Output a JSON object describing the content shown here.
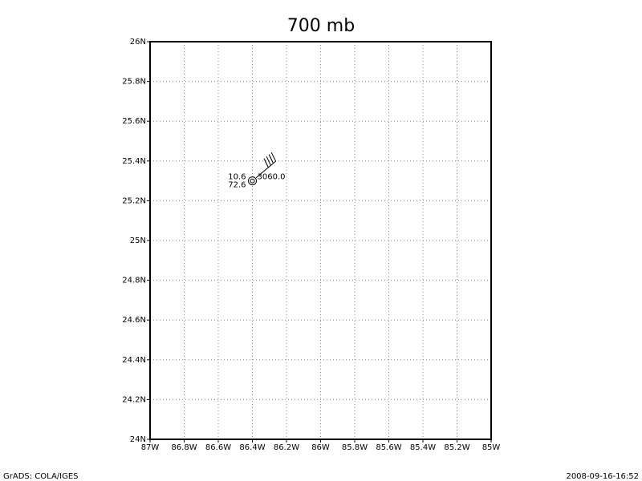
{
  "chart_data": {
    "type": "station",
    "title": "700 mb",
    "xlim": [
      -87,
      -85
    ],
    "xticks": [
      {
        "value": -87,
        "label": "87W"
      },
      {
        "value": -86.8,
        "label": "86.8W"
      },
      {
        "value": -86.6,
        "label": "86.6W"
      },
      {
        "value": -86.4,
        "label": "86.4W"
      },
      {
        "value": -86.2,
        "label": "86.2W"
      },
      {
        "value": -86,
        "label": "86W"
      },
      {
        "value": -85.8,
        "label": "85.8W"
      },
      {
        "value": -85.6,
        "label": "85.6W"
      },
      {
        "value": -85.4,
        "label": "85.4W"
      },
      {
        "value": -85.2,
        "label": "85.2W"
      },
      {
        "value": -85,
        "label": "85W"
      }
    ],
    "ylim": [
      24,
      26
    ],
    "yticks": [
      {
        "value": 24,
        "label": "24N"
      },
      {
        "value": 24.2,
        "label": "24.2N"
      },
      {
        "value": 24.4,
        "label": "24.4N"
      },
      {
        "value": 24.6,
        "label": "24.6N"
      },
      {
        "value": 24.8,
        "label": "24.8N"
      },
      {
        "value": 25,
        "label": "25N"
      },
      {
        "value": 25.2,
        "label": "25.2N"
      },
      {
        "value": 25.4,
        "label": "25.4N"
      },
      {
        "value": 25.6,
        "label": "25.6N"
      },
      {
        "value": 25.8,
        "label": "25.8N"
      },
      {
        "value": 26,
        "label": "26N"
      }
    ],
    "grid": true,
    "station": {
      "x": -86.4,
      "y": 25.3,
      "values": [
        10.6,
        72.6,
        3060
      ],
      "value_labels": [
        "10.6",
        "72.6",
        "3060.0"
      ],
      "wind_direction": 50,
      "wind_speed": 40
    },
    "footer_left": "GrADS: COLA/IGES",
    "footer_right": "2008-09-16-16:52"
  }
}
